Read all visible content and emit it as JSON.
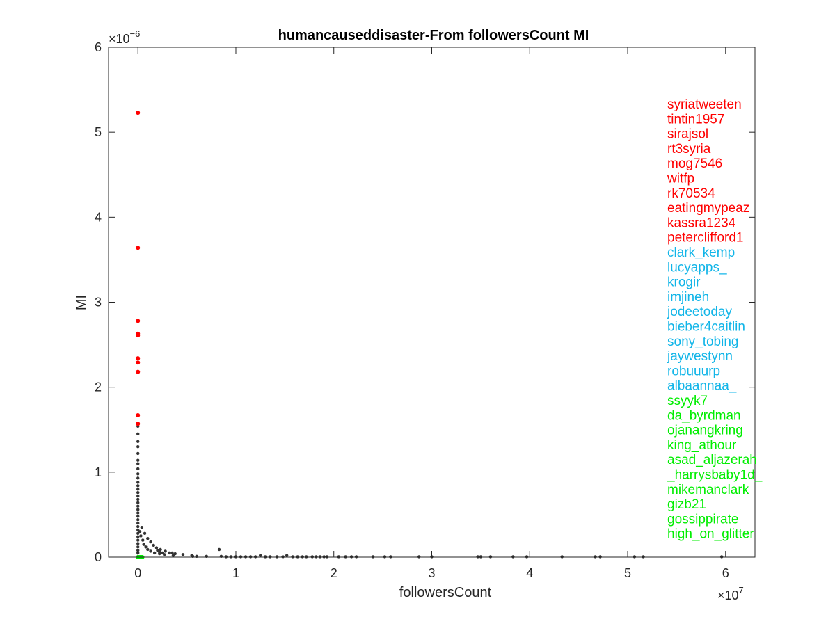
{
  "chart_data": {
    "type": "scatter",
    "title": "humancauseddisaster-From followersCount MI",
    "xlabel": "followersCount",
    "ylabel": "MI",
    "x_exponent": "×10",
    "x_exponent_power": "7",
    "y_exponent": "×10",
    "y_exponent_power": "−6",
    "xlim": [
      -0.3,
      6.3
    ],
    "ylim": [
      0,
      6
    ],
    "x_ticks": [
      0,
      1,
      2,
      3,
      4,
      5,
      6
    ],
    "y_ticks": [
      0,
      1,
      2,
      3,
      4,
      5,
      6
    ],
    "grid": false,
    "colors": {
      "background_points": "#333333",
      "top_users": "#ff0000",
      "middle_users": "#11b5e8",
      "bottom_users": "#00ee00"
    },
    "series": [
      {
        "group": "top_users",
        "points": [
          [
            0,
            5.23
          ],
          [
            0,
            3.64
          ],
          [
            0,
            2.78
          ],
          [
            0,
            2.63
          ],
          [
            0,
            2.61
          ],
          [
            0,
            2.34
          ],
          [
            0,
            2.29
          ],
          [
            0,
            2.18
          ],
          [
            0,
            1.67
          ],
          [
            0,
            1.57
          ]
        ]
      },
      {
        "group": "background_points",
        "points": [
          [
            0,
            1.54
          ],
          [
            0,
            1.45
          ],
          [
            0,
            1.36
          ],
          [
            0,
            1.3
          ],
          [
            0,
            1.22
          ],
          [
            0,
            1.14
          ],
          [
            0,
            1.1
          ],
          [
            0,
            1.04
          ],
          [
            0,
            0.98
          ],
          [
            0,
            0.93
          ],
          [
            0,
            0.88
          ],
          [
            0,
            0.84
          ],
          [
            0,
            0.8
          ],
          [
            0,
            0.76
          ],
          [
            0,
            0.72
          ],
          [
            0,
            0.68
          ],
          [
            0,
            0.64
          ],
          [
            0,
            0.6
          ],
          [
            0,
            0.56
          ],
          [
            0,
            0.52
          ],
          [
            0,
            0.48
          ],
          [
            0,
            0.44
          ],
          [
            0,
            0.4
          ],
          [
            0,
            0.36
          ],
          [
            0,
            0.32
          ],
          [
            0,
            0.28
          ],
          [
            0,
            0.24
          ],
          [
            0,
            0.2
          ],
          [
            0,
            0.16
          ],
          [
            0,
            0.12
          ],
          [
            0,
            0.08
          ],
          [
            0,
            0.05
          ],
          [
            0.02,
            0.3
          ],
          [
            0.03,
            0.25
          ],
          [
            0.05,
            0.2
          ],
          [
            0.06,
            0.15
          ],
          [
            0.08,
            0.12
          ],
          [
            0.1,
            0.09
          ],
          [
            0.13,
            0.07
          ],
          [
            0.17,
            0.05
          ],
          [
            0.22,
            0.04
          ],
          [
            0.27,
            0.03
          ],
          [
            0.04,
            0.35
          ],
          [
            0.07,
            0.28
          ],
          [
            0.1,
            0.22
          ],
          [
            0.13,
            0.18
          ],
          [
            0.16,
            0.14
          ],
          [
            0.19,
            0.11
          ],
          [
            0.23,
            0.09
          ],
          [
            0.28,
            0.07
          ],
          [
            0.32,
            0.05
          ],
          [
            0.38,
            0.04
          ],
          [
            0.46,
            0.03
          ],
          [
            0.55,
            0.02
          ],
          [
            0.2,
            0.08
          ],
          [
            0.22,
            0.06
          ],
          [
            0.25,
            0.05
          ],
          [
            0.35,
            0.05
          ],
          [
            0.36,
            0.02
          ],
          [
            0.56,
            0.01
          ],
          [
            0.6,
            0.01
          ],
          [
            0.7,
            0.01
          ],
          [
            0.83,
            0.09
          ],
          [
            0.85,
            0.01
          ],
          [
            0.9,
            0.005
          ],
          [
            0.95,
            0.005
          ],
          [
            1.0,
            0.005
          ],
          [
            1.05,
            0.005
          ],
          [
            1.1,
            0.005
          ],
          [
            1.15,
            0.005
          ],
          [
            1.2,
            0.005
          ],
          [
            1.25,
            0.02
          ],
          [
            1.3,
            0.005
          ],
          [
            1.35,
            0.005
          ],
          [
            1.42,
            0.005
          ],
          [
            1.48,
            0.005
          ],
          [
            1.52,
            0.02
          ],
          [
            1.58,
            0.005
          ],
          [
            1.63,
            0.005
          ],
          [
            1.68,
            0.005
          ],
          [
            1.72,
            0.005
          ],
          [
            1.78,
            0.005
          ],
          [
            1.82,
            0.005
          ],
          [
            1.86,
            0.005
          ],
          [
            1.9,
            0.005
          ],
          [
            1.93,
            0.005
          ],
          [
            2.05,
            0.005
          ],
          [
            2.12,
            0.005
          ],
          [
            2.18,
            0.005
          ],
          [
            2.23,
            0.005
          ],
          [
            2.4,
            0.005
          ],
          [
            2.52,
            0.005
          ],
          [
            2.58,
            0.005
          ],
          [
            2.87,
            0.005
          ],
          [
            3.0,
            0.005
          ],
          [
            3.47,
            0.005
          ],
          [
            3.5,
            0.005
          ],
          [
            3.6,
            0.005
          ],
          [
            3.83,
            0.005
          ],
          [
            3.97,
            0.005
          ],
          [
            4.33,
            0.005
          ],
          [
            4.67,
            0.005
          ],
          [
            4.72,
            0.005
          ],
          [
            5.07,
            0.005
          ],
          [
            5.16,
            0.005
          ],
          [
            5.96,
            0.005
          ]
        ]
      },
      {
        "group": "bottom_users",
        "points": [
          [
            0,
            0.0
          ],
          [
            0.005,
            0.0
          ],
          [
            0.01,
            0.0
          ],
          [
            0.015,
            0.0
          ],
          [
            0.02,
            0.0
          ],
          [
            0.025,
            0.0
          ],
          [
            0.03,
            0.0
          ],
          [
            0.035,
            0.0
          ],
          [
            0.04,
            0.0
          ],
          [
            0.045,
            0.0
          ]
        ]
      }
    ],
    "legend_labels": {
      "top_users": [
        "syriatweeten",
        "tintin1957",
        "sirajsol",
        "rt3syria",
        "mog7546",
        "witfp",
        "rk70534",
        "eatingmypeaz",
        "kassra1234",
        "peterclifford1"
      ],
      "middle_users": [
        "clark_kemp",
        "lucyapps_",
        "krogir",
        "imjineh",
        "jodeetoday",
        "bieber4caitlin",
        "sony_tobing",
        "jaywestynn",
        "robuuurp",
        "albaannaa_"
      ],
      "bottom_users": [
        "ssyyk7",
        "da_byrdman",
        "ojanangkring",
        "king_athour",
        "asad_aljazerah",
        "_harrysbaby1d_",
        "mikemanclark",
        "gizb21",
        "gossippirate",
        "high_on_glitter"
      ]
    }
  }
}
